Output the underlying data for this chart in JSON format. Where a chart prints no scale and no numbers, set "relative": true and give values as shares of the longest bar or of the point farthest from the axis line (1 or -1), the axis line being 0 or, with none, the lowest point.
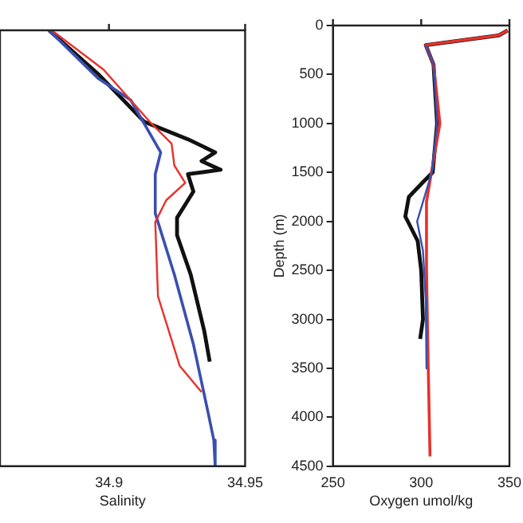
{
  "chart_data": [
    {
      "type": "line",
      "xlabel": "Salinity",
      "xlim": [
        34.86,
        34.95
      ],
      "xticks": [
        34.9,
        34.95
      ],
      "relative": true,
      "series": [
        {
          "color": "#e8312a",
          "x": [
            34.879,
            34.898,
            34.915,
            34.923,
            34.924,
            34.928,
            34.921,
            34.917,
            34.918,
            34.926,
            34.934
          ],
          "values": [
            0,
            -0.09,
            -0.21,
            -0.26,
            -0.31,
            -0.35,
            -0.39,
            -0.44,
            -0.61,
            -0.77,
            -0.83
          ]
        },
        {
          "color": "#3a4fb0",
          "x": [
            34.878,
            34.896,
            34.908,
            34.9135,
            34.919,
            34.917,
            34.917,
            34.924,
            34.931,
            34.9365,
            34.9385,
            34.939
          ],
          "values": [
            0,
            -0.11,
            -0.16,
            -0.22,
            -0.28,
            -0.33,
            -0.42,
            -0.56,
            -0.72,
            -0.88,
            -0.94,
            -1
          ]
        },
        {
          "color": "#111111",
          "x": [
            34.878,
            34.896,
            34.913,
            34.917,
            34.929,
            34.939,
            34.934,
            34.941,
            34.929,
            34.931,
            34.925,
            34.925,
            34.93,
            34.935,
            34.937
          ],
          "values": [
            0,
            -0.1,
            -0.21,
            -0.22,
            -0.25,
            -0.28,
            -0.3,
            -0.32,
            -0.33,
            -0.37,
            -0.43,
            -0.47,
            -0.56,
            -0.69,
            -0.76
          ]
        }
      ]
    },
    {
      "type": "line",
      "xlabel": "Oxygen umol/kg",
      "ylabel": "Depth (m)",
      "xlim": [
        250,
        350
      ],
      "xticks": [
        250,
        300,
        350
      ],
      "ylim": [
        4500,
        0
      ],
      "yticks": [
        0,
        500,
        1000,
        1500,
        2000,
        2500,
        3000,
        3500,
        4000,
        4500
      ],
      "series": [
        {
          "color": "#3a4fb0",
          "x": [
            302.6,
            307,
            309,
            306,
            297.7,
            301,
            302.6,
            303
          ],
          "values": [
            200,
            400,
            1000,
            1500,
            2000,
            2300,
            2800,
            3500
          ]
        },
        {
          "color": "#e8312a",
          "x": [
            349,
            344,
            302.6,
            307,
            310.6,
            305.8,
            303,
            303,
            304,
            305
          ],
          "values": [
            50,
            100,
            200,
            400,
            1000,
            1500,
            1800,
            2500,
            3500,
            4400
          ]
        },
        {
          "color": "#111111",
          "x": [
            349,
            344,
            302.6,
            307,
            309,
            306.5,
            301,
            293,
            291,
            298,
            300,
            301,
            299.4
          ],
          "values": [
            50,
            100,
            200,
            400,
            1000,
            1500,
            1600,
            1750,
            1950,
            2200,
            2500,
            3000,
            3200
          ]
        }
      ]
    }
  ]
}
